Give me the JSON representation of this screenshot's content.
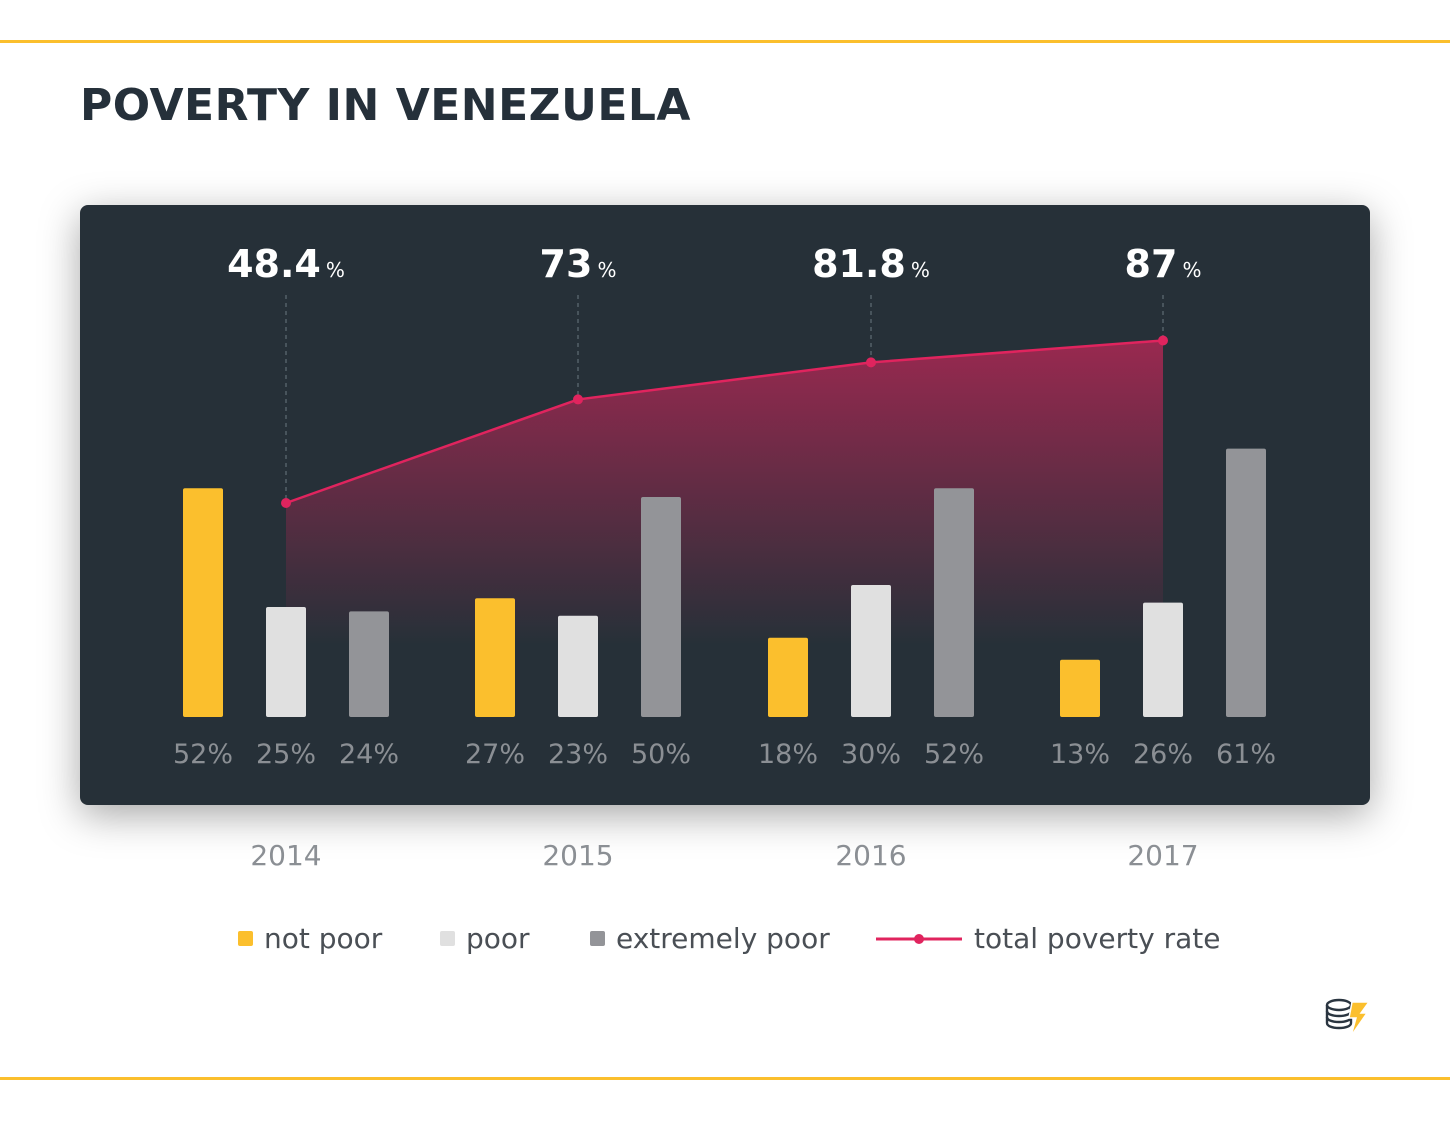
{
  "title": "POVERTY IN VENEZUELA",
  "colors": {
    "not_poor": "#fbbf2d",
    "poor": "#e0e0e0",
    "extremely_poor": "#939498",
    "total_line": "#e0245e",
    "panel": "#263038",
    "accent_rule": "#fbbf2d"
  },
  "legend": {
    "not_poor": "not poor",
    "poor": "poor",
    "extremely_poor": "extremely poor",
    "total": "total poverty rate"
  },
  "chart_data": {
    "type": "bar",
    "categories": [
      "2014",
      "2015",
      "2016",
      "2017"
    ],
    "series": [
      {
        "name": "not poor",
        "values": [
          52,
          27,
          18,
          13
        ],
        "labels": [
          "52%",
          "27%",
          "18%",
          "13%"
        ],
        "color": "#fbbf2d"
      },
      {
        "name": "poor",
        "values": [
          25,
          23,
          30,
          26
        ],
        "labels": [
          "25%",
          "23%",
          "30%",
          "26%"
        ],
        "color": "#e0e0e0"
      },
      {
        "name": "extremely poor",
        "values": [
          24,
          50,
          52,
          61
        ],
        "labels": [
          "24%",
          "50%",
          "52%",
          "61%"
        ],
        "color": "#939498"
      }
    ],
    "line": {
      "name": "total poverty rate",
      "type": "area",
      "values": [
        48.4,
        73,
        81.8,
        87
      ],
      "labels": [
        "48.4",
        "73",
        "81.8",
        "87"
      ],
      "unit": "%",
      "color": "#e0245e"
    },
    "grid": false,
    "legend_position": "bottom"
  }
}
